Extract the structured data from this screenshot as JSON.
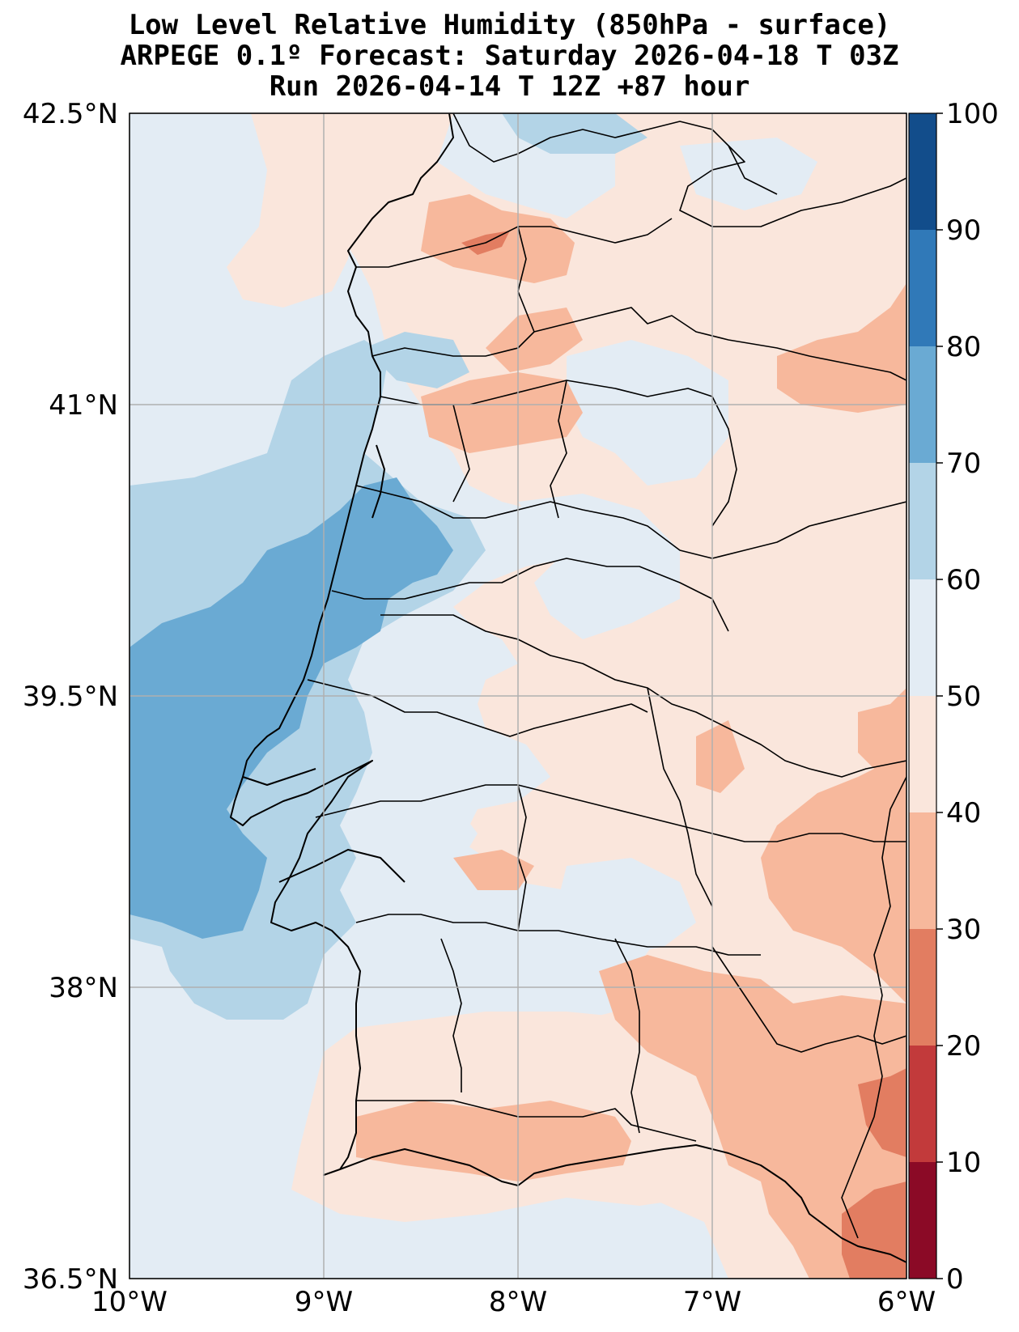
{
  "title": {
    "line1": "Low Level Relative Humidity (850hPa - surface)",
    "line2": "ARPEGE 0.1º Forecast: Saturday 2026-04-18 T 03Z",
    "line3": "Run 2026-04-14 T 12Z +87 hour"
  },
  "map": {
    "lon_range": [
      -10,
      -6
    ],
    "lat_range": [
      36.5,
      42.5
    ],
    "lat_ticks": [
      {
        "value": 42.5,
        "label": "42.5°N"
      },
      {
        "value": 41,
        "label": "41°N"
      },
      {
        "value": 39.5,
        "label": "39.5°N"
      },
      {
        "value": 38,
        "label": "38°N"
      },
      {
        "value": 36.5,
        "label": "36.5°N"
      }
    ],
    "lon_ticks": [
      {
        "value": -10,
        "label": "10°W"
      },
      {
        "value": -9,
        "label": "9°W"
      },
      {
        "value": -8,
        "label": "8°W"
      },
      {
        "value": -7,
        "label": "7°W"
      },
      {
        "value": -6,
        "label": "6°W"
      }
    ],
    "ocean_fill": "#e3ecf4",
    "coast_color": "#000000",
    "grid_color": "#b0b0b0"
  },
  "colorbar": {
    "levels": [
      0,
      10,
      20,
      30,
      40,
      50,
      60,
      70,
      80,
      90,
      100
    ],
    "tick_labels": [
      "0",
      "10",
      "20",
      "30",
      "40",
      "50",
      "60",
      "70",
      "80",
      "90",
      "100"
    ],
    "colors": [
      "#8b0a26",
      "#c23a3b",
      "#e27d61",
      "#f7b89c",
      "#fae6dc",
      "#e3ecf4",
      "#b3d4e7",
      "#6aaad3",
      "#3079b8",
      "#124d8b"
    ]
  }
}
